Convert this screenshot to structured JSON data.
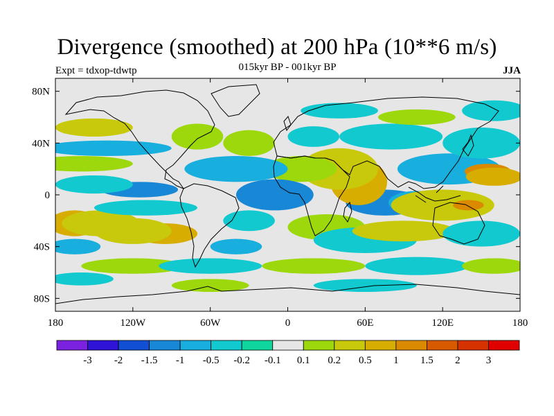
{
  "title": "Divergence (smoothed) at 200 hPa (10**6 m/s)",
  "subtitle": "015kyr BP - 001kyr BP",
  "experiment": "Expt = tdxop-tdwtp",
  "season": "JJA",
  "colors": {
    "ocean_background": "#e6e6e6",
    "coast": "#000000"
  },
  "chart_data": {
    "type": "heatmap",
    "variable": "200 hPa divergence difference (smoothed)",
    "units": "10**6 m/s",
    "x_ticks": [
      "180",
      "120W",
      "60W",
      "0",
      "60E",
      "120E",
      "180"
    ],
    "y_ticks": [
      "80N",
      "40N",
      "0",
      "40S",
      "80S"
    ],
    "xlim": [
      -180,
      180
    ],
    "ylim": [
      -90,
      90
    ],
    "colorbar": {
      "labels": [
        "-3",
        "-2",
        "-1.5",
        "-1",
        "-0.5",
        "-0.2",
        "-0.1",
        "0.1",
        "0.2",
        "0.5",
        "1",
        "1.5",
        "2",
        "3"
      ],
      "colors": [
        "#7b22e0",
        "#2f14d8",
        "#1150d2",
        "#1787d6",
        "#18aedd",
        "#11c9cf",
        "#0fd69d",
        "#e6e6e6",
        "#9cd80c",
        "#c8c90a",
        "#d7ad02",
        "#da8a00",
        "#d85a00",
        "#d63200",
        "#e00000"
      ]
    },
    "regions": [
      {
        "lon": 125,
        "lat": 20,
        "rx": 40,
        "ry": 12,
        "level": 4
      },
      {
        "lon": 155,
        "lat": 18,
        "rx": 18,
        "ry": 6,
        "level": 11
      },
      {
        "lon": 160,
        "lat": 14,
        "rx": 22,
        "ry": 7,
        "level": 10
      },
      {
        "lon": 75,
        "lat": -6,
        "rx": 30,
        "ry": 10,
        "level": 3
      },
      {
        "lon": 100,
        "lat": -6,
        "rx": 22,
        "ry": 9,
        "level": 4
      },
      {
        "lon": 60,
        "lat": 4,
        "rx": 10,
        "ry": 6,
        "level": 11
      },
      {
        "lon": 55,
        "lat": 10,
        "rx": 22,
        "ry": 18,
        "level": 10
      },
      {
        "lon": 40,
        "lat": 20,
        "rx": 30,
        "ry": 16,
        "level": 9
      },
      {
        "lon": 10,
        "lat": 20,
        "rx": 28,
        "ry": 10,
        "level": 8
      },
      {
        "lon": 120,
        "lat": -8,
        "rx": 40,
        "ry": 12,
        "level": 9
      },
      {
        "lon": 140,
        "lat": -8,
        "rx": 12,
        "ry": 4,
        "level": 11
      },
      {
        "lon": -165,
        "lat": -22,
        "rx": 20,
        "ry": 10,
        "level": 10
      },
      {
        "lon": -145,
        "lat": -22,
        "rx": 30,
        "ry": 10,
        "level": 9
      },
      {
        "lon": -95,
        "lat": -30,
        "rx": 25,
        "ry": 8,
        "level": 10
      },
      {
        "lon": -120,
        "lat": -28,
        "rx": 30,
        "ry": 10,
        "level": 9
      },
      {
        "lon": -110,
        "lat": -10,
        "rx": 40,
        "ry": 6,
        "level": 5
      },
      {
        "lon": -115,
        "lat": 4,
        "rx": 30,
        "ry": 6,
        "level": 3
      },
      {
        "lon": -150,
        "lat": 8,
        "rx": 30,
        "ry": 7,
        "level": 5
      },
      {
        "lon": -140,
        "lat": 36,
        "rx": 50,
        "ry": 6,
        "level": 4
      },
      {
        "lon": -150,
        "lat": 52,
        "rx": 30,
        "ry": 7,
        "level": 9
      },
      {
        "lon": -160,
        "lat": 24,
        "rx": 40,
        "ry": 6,
        "level": 8
      },
      {
        "lon": -70,
        "lat": 45,
        "rx": 20,
        "ry": 10,
        "level": 8
      },
      {
        "lon": -30,
        "lat": 40,
        "rx": 20,
        "ry": 10,
        "level": 8
      },
      {
        "lon": -40,
        "lat": 20,
        "rx": 40,
        "ry": 10,
        "level": 4
      },
      {
        "lon": -10,
        "lat": 0,
        "rx": 30,
        "ry": 12,
        "level": 3
      },
      {
        "lon": -30,
        "lat": -20,
        "rx": 20,
        "ry": 8,
        "level": 5
      },
      {
        "lon": 30,
        "lat": -25,
        "rx": 30,
        "ry": 10,
        "level": 8
      },
      {
        "lon": 60,
        "lat": -35,
        "rx": 40,
        "ry": 10,
        "level": 5
      },
      {
        "lon": 90,
        "lat": -28,
        "rx": 40,
        "ry": 8,
        "level": 9
      },
      {
        "lon": 150,
        "lat": -30,
        "rx": 30,
        "ry": 10,
        "level": 5
      },
      {
        "lon": 150,
        "lat": 40,
        "rx": 30,
        "ry": 12,
        "level": 5
      },
      {
        "lon": 80,
        "lat": 45,
        "rx": 40,
        "ry": 10,
        "level": 5
      },
      {
        "lon": 20,
        "lat": 45,
        "rx": 20,
        "ry": 8,
        "level": 5
      },
      {
        "lon": 100,
        "lat": 60,
        "rx": 30,
        "ry": 6,
        "level": 8
      },
      {
        "lon": 160,
        "lat": 65,
        "rx": 25,
        "ry": 8,
        "level": 5
      },
      {
        "lon": 40,
        "lat": 65,
        "rx": 30,
        "ry": 6,
        "level": 5
      },
      {
        "lon": -120,
        "lat": -55,
        "rx": 40,
        "ry": 6,
        "level": 8
      },
      {
        "lon": -60,
        "lat": -55,
        "rx": 40,
        "ry": 6,
        "level": 5
      },
      {
        "lon": 20,
        "lat": -55,
        "rx": 40,
        "ry": 6,
        "level": 8
      },
      {
        "lon": 100,
        "lat": -55,
        "rx": 40,
        "ry": 7,
        "level": 5
      },
      {
        "lon": 160,
        "lat": -55,
        "rx": 25,
        "ry": 6,
        "level": 8
      },
      {
        "lon": -160,
        "lat": -65,
        "rx": 25,
        "ry": 5,
        "level": 5
      },
      {
        "lon": -60,
        "lat": -70,
        "rx": 30,
        "ry": 5,
        "level": 8
      },
      {
        "lon": 60,
        "lat": -70,
        "rx": 40,
        "ry": 5,
        "level": 5
      },
      {
        "lon": -40,
        "lat": -40,
        "rx": 20,
        "ry": 6,
        "level": 4
      },
      {
        "lon": -165,
        "lat": -40,
        "rx": 20,
        "ry": 6,
        "level": 4
      }
    ]
  }
}
